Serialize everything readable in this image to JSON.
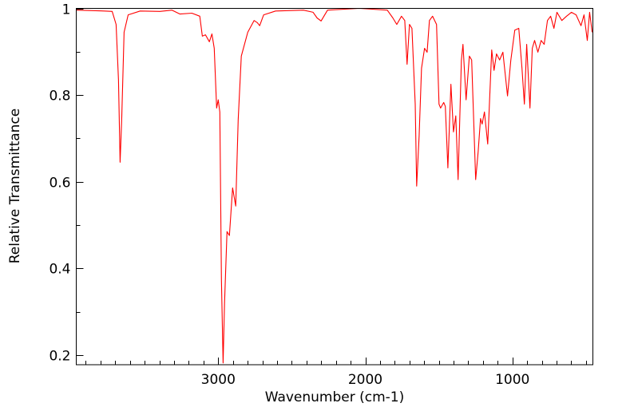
{
  "chart_data": {
    "type": "line",
    "title": "",
    "xlabel": "Wavenumber (cm-1)",
    "ylabel": "Relative Transmittance",
    "xlim": [
      3965,
      453
    ],
    "ylim": [
      0.178,
      1.0
    ],
    "x_major_ticks": [
      3000,
      2000,
      1000
    ],
    "x_tick_labels": [
      "3000",
      "2000",
      "1000"
    ],
    "x_minor_step": 100,
    "y_major_ticks": [
      0.2,
      0.4,
      0.6,
      0.8,
      1.0
    ],
    "y_tick_labels": [
      "0.2",
      "0.4",
      "0.6",
      "0.8",
      "1"
    ],
    "y_minor_ticks": [
      0.3,
      0.5,
      0.7,
      0.9
    ],
    "grid": false,
    "legend": "none",
    "series": [
      {
        "name": "spectrum",
        "color": "#ff0000",
        "x": [
          3965,
          3775,
          3721,
          3694,
          3678,
          3667,
          3656,
          3640,
          3612,
          3531,
          3396,
          3314,
          3260,
          3179,
          3125,
          3108,
          3087,
          3060,
          3043,
          3027,
          3011,
          3000,
          2989,
          2978,
          2967,
          2957,
          2940,
          2924,
          2902,
          2881,
          2864,
          2843,
          2799,
          2756,
          2734,
          2718,
          2691,
          2610,
          2420,
          2355,
          2328,
          2301,
          2257,
          2041,
          1851,
          1813,
          1786,
          1754,
          1732,
          1716,
          1700,
          1683,
          1661,
          1651,
          1634,
          1618,
          1597,
          1580,
          1564,
          1543,
          1516,
          1499,
          1488,
          1467,
          1456,
          1439,
          1418,
          1401,
          1385,
          1369,
          1347,
          1336,
          1315,
          1293,
          1277,
          1250,
          1233,
          1217,
          1206,
          1190,
          1168,
          1141,
          1125,
          1108,
          1087,
          1065,
          1033,
          1011,
          984,
          957,
          935,
          919,
          903,
          881,
          865,
          849,
          827,
          805,
          784,
          762,
          740,
          718,
          697,
          664,
          632,
          599,
          567,
          534,
          513,
          491,
          475,
          458
        ],
        "y": [
          0.996,
          0.994,
          0.993,
          0.963,
          0.834,
          0.645,
          0.743,
          0.945,
          0.985,
          0.994,
          0.993,
          0.996,
          0.987,
          0.989,
          0.982,
          0.936,
          0.939,
          0.923,
          0.941,
          0.908,
          0.77,
          0.789,
          0.761,
          0.375,
          0.182,
          0.32,
          0.485,
          0.476,
          0.586,
          0.544,
          0.743,
          0.89,
          0.945,
          0.972,
          0.967,
          0.96,
          0.985,
          0.994,
          0.996,
          0.991,
          0.978,
          0.971,
          0.996,
          1.0,
          0.996,
          0.978,
          0.963,
          0.982,
          0.972,
          0.871,
          0.963,
          0.954,
          0.779,
          0.59,
          0.706,
          0.862,
          0.908,
          0.899,
          0.972,
          0.982,
          0.963,
          0.779,
          0.77,
          0.783,
          0.774,
          0.632,
          0.825,
          0.715,
          0.752,
          0.605,
          0.88,
          0.917,
          0.789,
          0.89,
          0.881,
          0.605,
          0.669,
          0.746,
          0.733,
          0.761,
          0.687,
          0.904,
          0.857,
          0.895,
          0.881,
          0.899,
          0.798,
          0.88,
          0.95,
          0.954,
          0.862,
          0.779,
          0.917,
          0.77,
          0.908,
          0.926,
          0.899,
          0.926,
          0.917,
          0.972,
          0.982,
          0.954,
          0.991,
          0.972,
          0.982,
          0.991,
          0.985,
          0.96,
          0.985,
          0.926,
          0.991,
          0.945
        ]
      }
    ]
  }
}
